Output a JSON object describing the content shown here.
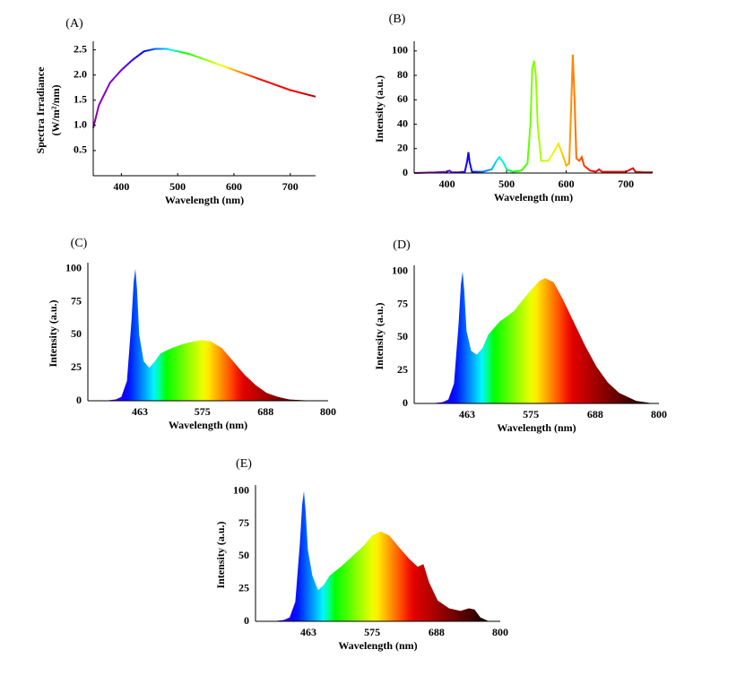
{
  "chart_data": [
    {
      "type": "line",
      "label": "(A)",
      "ylabel": [
        "Spectra Irradiance",
        "(W/m²/nm)"
      ],
      "xlabel": "Wavelength (nm)",
      "color_scale": "spectrum",
      "x": [
        350,
        360,
        380,
        400,
        420,
        440,
        460,
        480,
        500,
        520,
        550,
        600,
        650,
        700,
        745
      ],
      "values": [
        0.95,
        1.4,
        1.85,
        2.1,
        2.3,
        2.47,
        2.52,
        2.52,
        2.47,
        2.42,
        2.3,
        2.1,
        1.9,
        1.7,
        1.57
      ],
      "xlim": [
        350,
        745
      ],
      "ylim": [
        0,
        2.6
      ],
      "xticks": [
        400,
        500,
        600,
        700
      ],
      "yticks": [
        0.5,
        {
          "value": 1,
          "label": "1.0"
        },
        1.5,
        {
          "value": 2,
          "label": "2.0"
        },
        2.5
      ]
    },
    {
      "type": "line",
      "label": "(B)",
      "ylabel": "Intensity (a.u.)",
      "xlabel": "Wavelength (nm)",
      "color_scale": "spectrum",
      "x": [
        345,
        380,
        400,
        404,
        408,
        420,
        430,
        434,
        436,
        438,
        442,
        460,
        475,
        483,
        488,
        494,
        500,
        510,
        525,
        535,
        540,
        543,
        546,
        549,
        552,
        558,
        570,
        580,
        587,
        594,
        600,
        605,
        608,
        611,
        614,
        617,
        622,
        626,
        630,
        640,
        650,
        655,
        660,
        680,
        700,
        708,
        712,
        716,
        730,
        745
      ],
      "values": [
        0,
        0.5,
        1,
        2,
        0.5,
        0.5,
        1,
        10,
        17,
        9,
        1,
        1,
        3,
        10,
        13,
        9,
        3,
        1,
        2,
        8,
        40,
        85,
        92,
        80,
        40,
        10,
        10,
        18,
        24,
        15,
        6,
        8,
        50,
        97,
        60,
        12,
        10,
        13,
        6,
        2,
        1,
        3,
        1,
        1,
        1,
        3,
        4,
        1,
        0.5,
        0.5
      ],
      "xlim": [
        345,
        745
      ],
      "ylim": [
        0,
        105
      ],
      "xticks": [
        400,
        500,
        600,
        700
      ],
      "yticks": [
        0,
        20,
        40,
        60,
        80,
        100
      ]
    },
    {
      "type": "area",
      "label": "(C)",
      "ylabel": "Intensity (a.u.)",
      "xlabel": "Wavelength (nm)",
      "color_scale": "spectrum",
      "x": [
        400,
        420,
        430,
        440,
        448,
        452,
        455,
        458,
        462,
        470,
        480,
        490,
        500,
        520,
        540,
        560,
        575,
        590,
        610,
        630,
        650,
        670,
        690,
        710,
        730,
        750,
        780
      ],
      "values": [
        0,
        1,
        3,
        15,
        60,
        90,
        100,
        85,
        50,
        30,
        25,
        30,
        36,
        40,
        43,
        45,
        46,
        45,
        40,
        30,
        20,
        12,
        6,
        3,
        1,
        0.5,
        0
      ],
      "xlim": [
        370,
        800
      ],
      "ylim": [
        0,
        102
      ],
      "xticks": [
        463,
        575,
        688,
        800
      ],
      "yticks": [
        0,
        25,
        50,
        75,
        100
      ]
    },
    {
      "type": "area",
      "label": "(D)",
      "ylabel": "Intensity (a.u.)",
      "xlabel": "Wavelength (nm)",
      "color_scale": "spectrum",
      "x": [
        400,
        420,
        430,
        440,
        448,
        452,
        455,
        458,
        462,
        470,
        480,
        490,
        500,
        520,
        545,
        560,
        575,
        590,
        600,
        615,
        630,
        650,
        670,
        690,
        710,
        730,
        760,
        790
      ],
      "values": [
        0,
        1,
        3,
        15,
        60,
        90,
        100,
        85,
        55,
        40,
        37,
        42,
        52,
        62,
        70,
        78,
        86,
        93,
        95,
        92,
        80,
        62,
        44,
        28,
        16,
        8,
        2,
        0
      ],
      "xlim": [
        370,
        800
      ],
      "ylim": [
        0,
        102
      ],
      "xticks": [
        463,
        575,
        688,
        800
      ],
      "yticks": [
        0,
        25,
        50,
        75,
        100
      ]
    },
    {
      "type": "area",
      "label": "(E)",
      "ylabel": "Intensity (a.u.)",
      "xlabel": "Wavelength (nm)",
      "color_scale": "spectrum",
      "x": [
        400,
        420,
        430,
        440,
        448,
        452,
        455,
        458,
        462,
        470,
        480,
        490,
        500,
        520,
        540,
        560,
        575,
        590,
        605,
        620,
        640,
        655,
        665,
        675,
        690,
        710,
        730,
        745,
        755,
        765,
        780
      ],
      "values": [
        0,
        1,
        3,
        15,
        60,
        90,
        100,
        85,
        55,
        35,
        24,
        28,
        35,
        42,
        50,
        58,
        66,
        69,
        66,
        58,
        48,
        42,
        44,
        30,
        16,
        10,
        8,
        10,
        9,
        3,
        0
      ],
      "xlim": [
        370,
        800
      ],
      "ylim": [
        0,
        102
      ],
      "xticks": [
        463,
        575,
        688,
        800
      ],
      "yticks": [
        0,
        25,
        50,
        75,
        100
      ]
    }
  ]
}
